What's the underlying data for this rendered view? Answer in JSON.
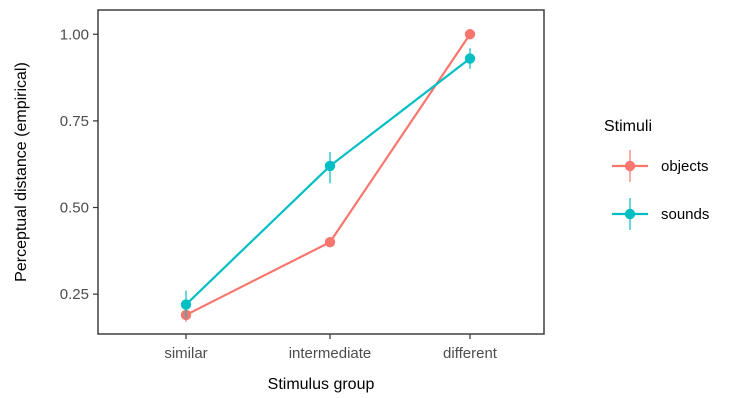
{
  "chart_data": {
    "type": "line",
    "title": "",
    "xlabel": "Stimulus group",
    "ylabel": "Perceptual distance (empirical)",
    "categories": [
      "similar",
      "intermediate",
      "different"
    ],
    "ylim": [
      0.135,
      1.07
    ],
    "yticks": [
      0.25,
      0.5,
      0.75,
      1.0
    ],
    "ytick_labels": [
      "0.25",
      "0.50",
      "0.75",
      "1.00"
    ],
    "grid": false,
    "legend": {
      "title": "Stimuli",
      "position": "right"
    },
    "series": [
      {
        "name": "objects",
        "color": "#F8766D",
        "values": [
          0.19,
          0.4,
          1.0
        ],
        "err_low": [
          0.17,
          0.39,
          0.995
        ],
        "err_high": [
          0.21,
          0.41,
          1.005
        ]
      },
      {
        "name": "sounds",
        "color": "#00BFC4",
        "values": [
          0.22,
          0.62,
          0.93
        ],
        "err_low": [
          0.18,
          0.57,
          0.9
        ],
        "err_high": [
          0.26,
          0.66,
          0.96
        ]
      }
    ]
  }
}
